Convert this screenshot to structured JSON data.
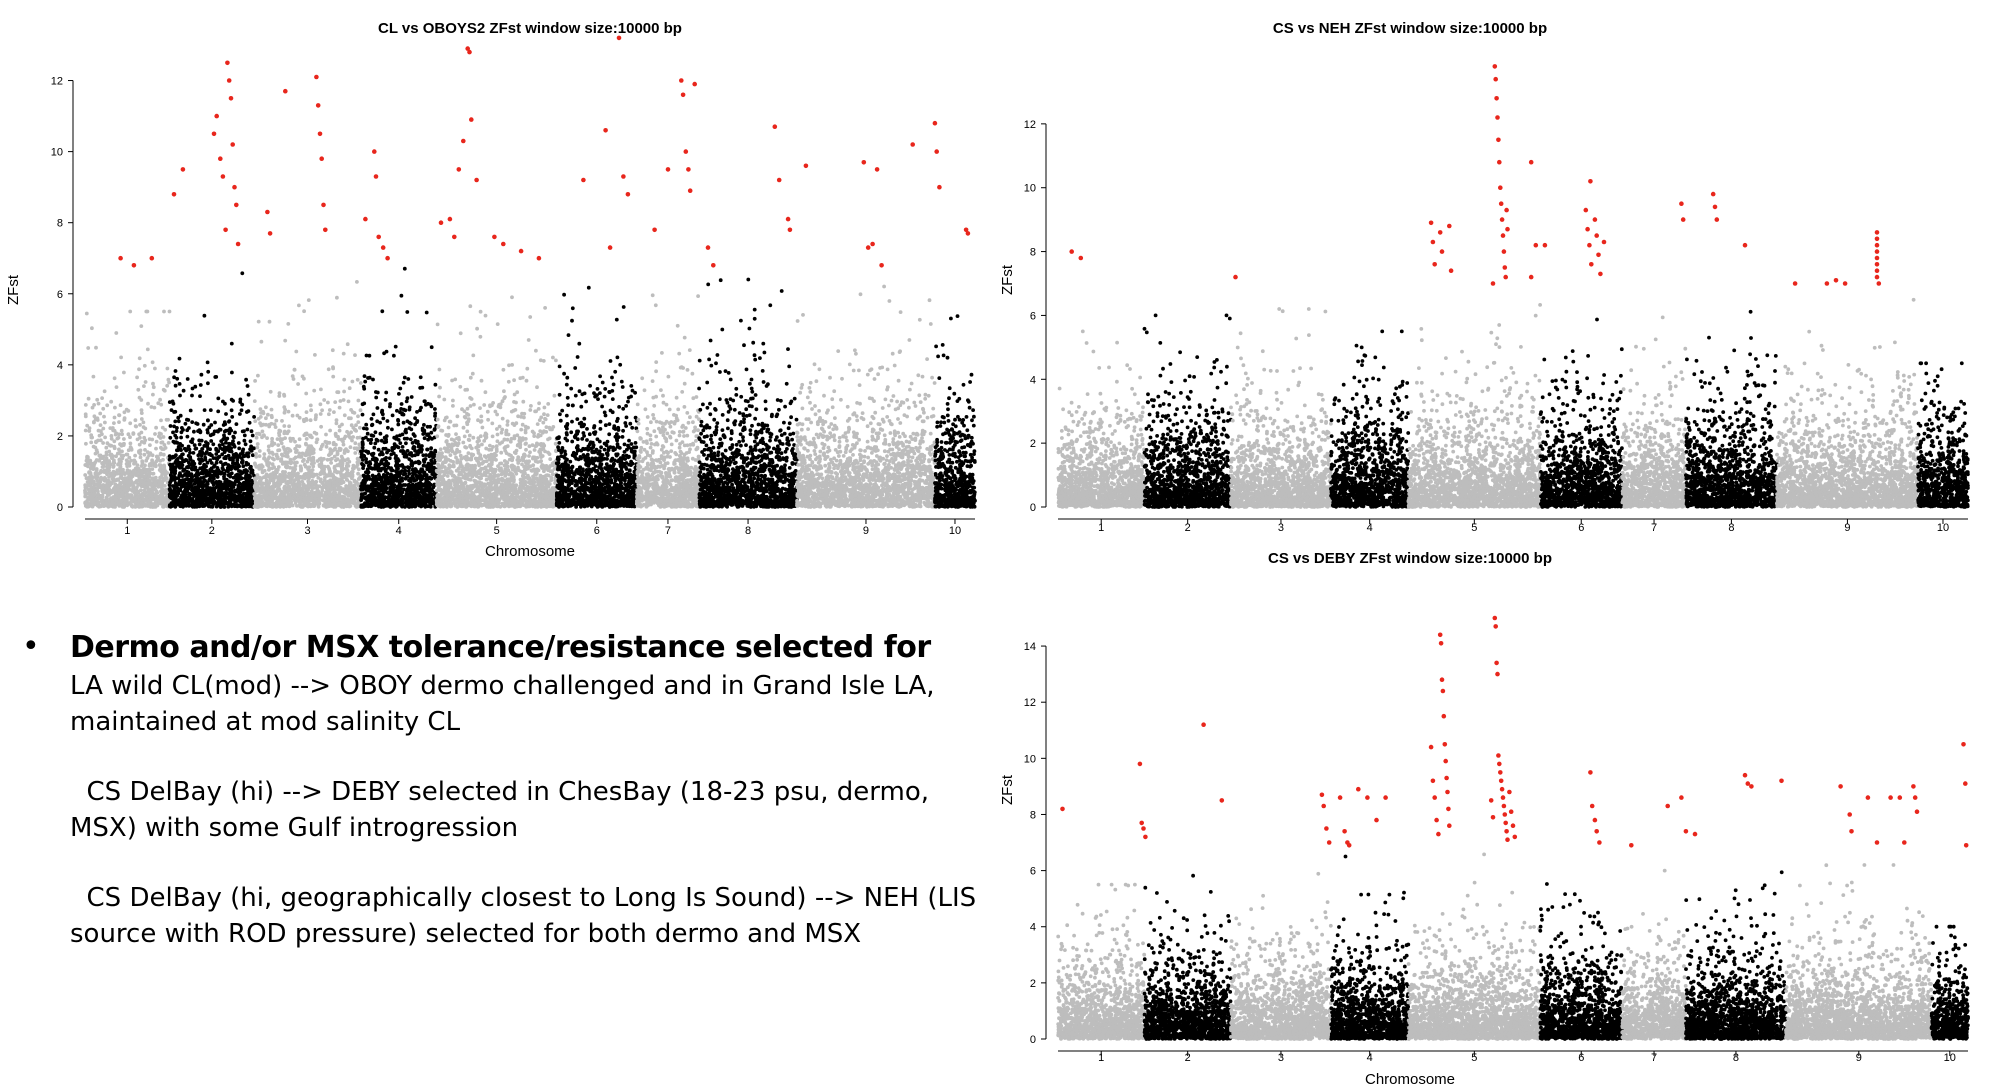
{
  "chart_data": [
    {
      "type": "scatter",
      "title": "CL vs OBOYS2 ZFst window size:10000 bp",
      "xlabel": "Chromosome",
      "ylabel": "ZFst",
      "ylim": [
        0,
        13
      ],
      "yticks": [
        0,
        2,
        4,
        6,
        8,
        10,
        12
      ],
      "categories": [
        "1",
        "2",
        "3",
        "4",
        "5",
        "6",
        "7",
        "8",
        "9",
        "10"
      ],
      "chromosome_spans": [
        [
          0.0,
          0.095
        ],
        [
          0.095,
          0.19
        ],
        [
          0.19,
          0.31
        ],
        [
          0.31,
          0.395
        ],
        [
          0.395,
          0.53
        ],
        [
          0.53,
          0.62
        ],
        [
          0.62,
          0.69
        ],
        [
          0.69,
          0.8
        ],
        [
          0.8,
          0.955
        ],
        [
          0.955,
          1.0
        ]
      ],
      "chromosome_colors": [
        "#bdbdbd",
        "#000000",
        "#bdbdbd",
        "#000000",
        "#bdbdbd",
        "#000000",
        "#bdbdbd",
        "#000000",
        "#bdbdbd",
        "#000000"
      ],
      "chromosome_peaks": [
        5.5,
        6.8,
        6.5,
        6.8,
        6.5,
        6.3,
        6.5,
        6.8,
        6.5,
        6.8
      ],
      "threshold": 7.0,
      "outlier_color": "#e8261c",
      "point_color_primary": "#bdbdbd",
      "point_color_secondary": "#000000",
      "outliers": [
        {
          "x": 0.04,
          "y": 7.0
        },
        {
          "x": 0.055,
          "y": 6.8
        },
        {
          "x": 0.075,
          "y": 7.0
        },
        {
          "x": 0.1,
          "y": 8.8
        },
        {
          "x": 0.11,
          "y": 9.5
        },
        {
          "x": 0.145,
          "y": 10.5
        },
        {
          "x": 0.148,
          "y": 11.0
        },
        {
          "x": 0.152,
          "y": 9.8
        },
        {
          "x": 0.155,
          "y": 9.3
        },
        {
          "x": 0.158,
          "y": 7.8
        },
        {
          "x": 0.16,
          "y": 12.5
        },
        {
          "x": 0.162,
          "y": 12.0
        },
        {
          "x": 0.164,
          "y": 11.5
        },
        {
          "x": 0.166,
          "y": 10.2
        },
        {
          "x": 0.168,
          "y": 9.0
        },
        {
          "x": 0.17,
          "y": 8.5
        },
        {
          "x": 0.172,
          "y": 7.4
        },
        {
          "x": 0.205,
          "y": 8.3
        },
        {
          "x": 0.208,
          "y": 7.7
        },
        {
          "x": 0.225,
          "y": 11.7
        },
        {
          "x": 0.26,
          "y": 12.1
        },
        {
          "x": 0.262,
          "y": 11.3
        },
        {
          "x": 0.264,
          "y": 10.5
        },
        {
          "x": 0.266,
          "y": 9.8
        },
        {
          "x": 0.268,
          "y": 8.5
        },
        {
          "x": 0.27,
          "y": 7.8
        },
        {
          "x": 0.315,
          "y": 8.1
        },
        {
          "x": 0.325,
          "y": 10.0
        },
        {
          "x": 0.327,
          "y": 9.3
        },
        {
          "x": 0.33,
          "y": 7.6
        },
        {
          "x": 0.335,
          "y": 7.3
        },
        {
          "x": 0.34,
          "y": 7.0
        },
        {
          "x": 0.4,
          "y": 8.0
        },
        {
          "x": 0.41,
          "y": 8.1
        },
        {
          "x": 0.415,
          "y": 7.6
        },
        {
          "x": 0.42,
          "y": 9.5
        },
        {
          "x": 0.425,
          "y": 10.3
        },
        {
          "x": 0.43,
          "y": 12.9
        },
        {
          "x": 0.432,
          "y": 12.8
        },
        {
          "x": 0.434,
          "y": 10.9
        },
        {
          "x": 0.44,
          "y": 9.2
        },
        {
          "x": 0.46,
          "y": 7.6
        },
        {
          "x": 0.47,
          "y": 7.4
        },
        {
          "x": 0.49,
          "y": 7.2
        },
        {
          "x": 0.51,
          "y": 7.0
        },
        {
          "x": 0.56,
          "y": 9.2
        },
        {
          "x": 0.585,
          "y": 10.6
        },
        {
          "x": 0.59,
          "y": 7.3
        },
        {
          "x": 0.6,
          "y": 13.2
        },
        {
          "x": 0.605,
          "y": 9.3
        },
        {
          "x": 0.61,
          "y": 8.8
        },
        {
          "x": 0.64,
          "y": 7.8
        },
        {
          "x": 0.655,
          "y": 9.5
        },
        {
          "x": 0.67,
          "y": 12.0
        },
        {
          "x": 0.672,
          "y": 11.6
        },
        {
          "x": 0.675,
          "y": 10.0
        },
        {
          "x": 0.678,
          "y": 9.5
        },
        {
          "x": 0.68,
          "y": 8.9
        },
        {
          "x": 0.685,
          "y": 11.9
        },
        {
          "x": 0.7,
          "y": 7.3
        },
        {
          "x": 0.706,
          "y": 6.8
        },
        {
          "x": 0.775,
          "y": 10.7
        },
        {
          "x": 0.78,
          "y": 9.2
        },
        {
          "x": 0.79,
          "y": 8.1
        },
        {
          "x": 0.792,
          "y": 7.8
        },
        {
          "x": 0.81,
          "y": 9.6
        },
        {
          "x": 0.875,
          "y": 9.7
        },
        {
          "x": 0.88,
          "y": 7.3
        },
        {
          "x": 0.885,
          "y": 7.4
        },
        {
          "x": 0.89,
          "y": 9.5
        },
        {
          "x": 0.895,
          "y": 6.8
        },
        {
          "x": 0.93,
          "y": 10.2
        },
        {
          "x": 0.955,
          "y": 10.8
        },
        {
          "x": 0.957,
          "y": 10.0
        },
        {
          "x": 0.96,
          "y": 9.0
        },
        {
          "x": 0.99,
          "y": 7.8
        },
        {
          "x": 0.992,
          "y": 7.7
        }
      ]
    },
    {
      "type": "scatter",
      "title": "CS vs NEH ZFst window size:10000 bp",
      "xlabel": "",
      "ylabel": "ZFst",
      "ylim": [
        0,
        14
      ],
      "yticks": [
        0,
        2,
        4,
        6,
        8,
        10,
        12
      ],
      "categories": [
        "1",
        "2",
        "3",
        "4",
        "5",
        "6",
        "7",
        "8",
        "9",
        "10"
      ],
      "chromosome_spans": [
        [
          0.0,
          0.095
        ],
        [
          0.095,
          0.19
        ],
        [
          0.19,
          0.3
        ],
        [
          0.3,
          0.385
        ],
        [
          0.385,
          0.53
        ],
        [
          0.53,
          0.62
        ],
        [
          0.62,
          0.69
        ],
        [
          0.69,
          0.79
        ],
        [
          0.79,
          0.945
        ],
        [
          0.945,
          1.0
        ]
      ],
      "chromosome_colors": [
        "#bdbdbd",
        "#000000",
        "#bdbdbd",
        "#000000",
        "#bdbdbd",
        "#000000",
        "#bdbdbd",
        "#000000",
        "#bdbdbd",
        "#000000"
      ],
      "chromosome_peaks": [
        5.5,
        6.0,
        6.2,
        5.5,
        6.5,
        7.0,
        6.5,
        6.5,
        6.5,
        4.5
      ],
      "threshold": 7.0,
      "outlier_color": "#e8261c",
      "point_color_primary": "#bdbdbd",
      "point_color_secondary": "#000000",
      "outliers": [
        {
          "x": 0.015,
          "y": 8.0
        },
        {
          "x": 0.025,
          "y": 7.8
        },
        {
          "x": 0.195,
          "y": 7.2
        },
        {
          "x": 0.41,
          "y": 8.9
        },
        {
          "x": 0.412,
          "y": 8.3
        },
        {
          "x": 0.414,
          "y": 7.6
        },
        {
          "x": 0.42,
          "y": 8.6
        },
        {
          "x": 0.422,
          "y": 8.0
        },
        {
          "x": 0.43,
          "y": 8.8
        },
        {
          "x": 0.432,
          "y": 7.4
        },
        {
          "x": 0.48,
          "y": 13.8
        },
        {
          "x": 0.481,
          "y": 13.4
        },
        {
          "x": 0.482,
          "y": 12.8
        },
        {
          "x": 0.483,
          "y": 12.2
        },
        {
          "x": 0.484,
          "y": 11.5
        },
        {
          "x": 0.485,
          "y": 10.8
        },
        {
          "x": 0.486,
          "y": 10.0
        },
        {
          "x": 0.487,
          "y": 9.5
        },
        {
          "x": 0.488,
          "y": 9.0
        },
        {
          "x": 0.489,
          "y": 8.5
        },
        {
          "x": 0.49,
          "y": 8.0
        },
        {
          "x": 0.491,
          "y": 7.5
        },
        {
          "x": 0.492,
          "y": 7.2
        },
        {
          "x": 0.478,
          "y": 7.0
        },
        {
          "x": 0.493,
          "y": 9.3
        },
        {
          "x": 0.494,
          "y": 8.7
        },
        {
          "x": 0.52,
          "y": 10.8
        },
        {
          "x": 0.525,
          "y": 8.2
        },
        {
          "x": 0.535,
          "y": 8.2
        },
        {
          "x": 0.52,
          "y": 7.2
        },
        {
          "x": 0.585,
          "y": 10.2
        },
        {
          "x": 0.58,
          "y": 9.3
        },
        {
          "x": 0.582,
          "y": 8.7
        },
        {
          "x": 0.584,
          "y": 8.2
        },
        {
          "x": 0.586,
          "y": 7.6
        },
        {
          "x": 0.59,
          "y": 9.0
        },
        {
          "x": 0.592,
          "y": 8.5
        },
        {
          "x": 0.594,
          "y": 7.9
        },
        {
          "x": 0.596,
          "y": 7.3
        },
        {
          "x": 0.6,
          "y": 8.3
        },
        {
          "x": 0.685,
          "y": 9.5
        },
        {
          "x": 0.687,
          "y": 9.0
        },
        {
          "x": 0.72,
          "y": 9.8
        },
        {
          "x": 0.722,
          "y": 9.4
        },
        {
          "x": 0.724,
          "y": 9.0
        },
        {
          "x": 0.755,
          "y": 8.2
        },
        {
          "x": 0.81,
          "y": 7.0
        },
        {
          "x": 0.845,
          "y": 7.0
        },
        {
          "x": 0.855,
          "y": 7.1
        },
        {
          "x": 0.865,
          "y": 7.0
        },
        {
          "x": 0.9,
          "y": 8.6
        },
        {
          "x": 0.9,
          "y": 8.4
        },
        {
          "x": 0.9,
          "y": 8.2
        },
        {
          "x": 0.9,
          "y": 8.0
        },
        {
          "x": 0.9,
          "y": 7.8
        },
        {
          "x": 0.9,
          "y": 7.6
        },
        {
          "x": 0.9,
          "y": 7.4
        },
        {
          "x": 0.9,
          "y": 7.2
        },
        {
          "x": 0.902,
          "y": 7.0
        }
      ]
    },
    {
      "type": "scatter",
      "title": "CS vs DEBY ZFst window size:10000 bp",
      "xlabel": "Chromosome",
      "ylabel": "ZFst",
      "ylim": [
        0,
        15
      ],
      "yticks": [
        0,
        2,
        4,
        6,
        8,
        10,
        12,
        14
      ],
      "categories": [
        "1",
        "2",
        "3",
        "4",
        "5",
        "6",
        "7",
        "8",
        "9",
        "10"
      ],
      "chromosome_spans": [
        [
          0.0,
          0.095
        ],
        [
          0.095,
          0.19
        ],
        [
          0.19,
          0.3
        ],
        [
          0.3,
          0.385
        ],
        [
          0.385,
          0.53
        ],
        [
          0.53,
          0.62
        ],
        [
          0.62,
          0.69
        ],
        [
          0.69,
          0.8
        ],
        [
          0.8,
          0.96
        ],
        [
          0.96,
          1.0
        ]
      ],
      "chromosome_colors": [
        "#bdbdbd",
        "#000000",
        "#bdbdbd",
        "#000000",
        "#bdbdbd",
        "#000000",
        "#bdbdbd",
        "#000000",
        "#bdbdbd",
        "#000000"
      ],
      "chromosome_peaks": [
        5.5,
        6.2,
        6.0,
        6.8,
        6.8,
        6.3,
        6.0,
        6.3,
        6.2,
        4.0
      ],
      "threshold": 7.0,
      "outlier_color": "#e8261c",
      "point_color_primary": "#bdbdbd",
      "point_color_secondary": "#000000",
      "outliers": [
        {
          "x": 0.005,
          "y": 8.2
        },
        {
          "x": 0.09,
          "y": 9.8
        },
        {
          "x": 0.092,
          "y": 7.7
        },
        {
          "x": 0.094,
          "y": 7.5
        },
        {
          "x": 0.096,
          "y": 7.2
        },
        {
          "x": 0.16,
          "y": 11.2
        },
        {
          "x": 0.18,
          "y": 8.5
        },
        {
          "x": 0.29,
          "y": 8.7
        },
        {
          "x": 0.292,
          "y": 8.3
        },
        {
          "x": 0.295,
          "y": 7.5
        },
        {
          "x": 0.298,
          "y": 7.0
        },
        {
          "x": 0.31,
          "y": 8.6
        },
        {
          "x": 0.315,
          "y": 7.4
        },
        {
          "x": 0.318,
          "y": 7.0
        },
        {
          "x": 0.32,
          "y": 6.9
        },
        {
          "x": 0.33,
          "y": 8.9
        },
        {
          "x": 0.34,
          "y": 8.6
        },
        {
          "x": 0.35,
          "y": 7.8
        },
        {
          "x": 0.36,
          "y": 8.6
        },
        {
          "x": 0.41,
          "y": 10.4
        },
        {
          "x": 0.412,
          "y": 9.2
        },
        {
          "x": 0.414,
          "y": 8.6
        },
        {
          "x": 0.416,
          "y": 7.8
        },
        {
          "x": 0.418,
          "y": 7.3
        },
        {
          "x": 0.42,
          "y": 14.4
        },
        {
          "x": 0.421,
          "y": 14.1
        },
        {
          "x": 0.422,
          "y": 12.8
        },
        {
          "x": 0.423,
          "y": 12.4
        },
        {
          "x": 0.424,
          "y": 11.5
        },
        {
          "x": 0.425,
          "y": 10.5
        },
        {
          "x": 0.426,
          "y": 9.9
        },
        {
          "x": 0.427,
          "y": 9.3
        },
        {
          "x": 0.428,
          "y": 8.8
        },
        {
          "x": 0.429,
          "y": 8.2
        },
        {
          "x": 0.43,
          "y": 7.6
        },
        {
          "x": 0.48,
          "y": 15.0
        },
        {
          "x": 0.481,
          "y": 14.7
        },
        {
          "x": 0.482,
          "y": 13.4
        },
        {
          "x": 0.483,
          "y": 13.0
        },
        {
          "x": 0.484,
          "y": 10.1
        },
        {
          "x": 0.485,
          "y": 9.8
        },
        {
          "x": 0.486,
          "y": 9.5
        },
        {
          "x": 0.487,
          "y": 9.2
        },
        {
          "x": 0.488,
          "y": 8.9
        },
        {
          "x": 0.489,
          "y": 8.6
        },
        {
          "x": 0.49,
          "y": 8.3
        },
        {
          "x": 0.491,
          "y": 8.0
        },
        {
          "x": 0.492,
          "y": 7.7
        },
        {
          "x": 0.493,
          "y": 7.4
        },
        {
          "x": 0.494,
          "y": 7.1
        },
        {
          "x": 0.476,
          "y": 8.5
        },
        {
          "x": 0.478,
          "y": 7.9
        },
        {
          "x": 0.496,
          "y": 8.8
        },
        {
          "x": 0.498,
          "y": 8.1
        },
        {
          "x": 0.5,
          "y": 7.6
        },
        {
          "x": 0.502,
          "y": 7.2
        },
        {
          "x": 0.585,
          "y": 9.5
        },
        {
          "x": 0.587,
          "y": 8.3
        },
        {
          "x": 0.59,
          "y": 7.8
        },
        {
          "x": 0.592,
          "y": 7.4
        },
        {
          "x": 0.595,
          "y": 7.0
        },
        {
          "x": 0.63,
          "y": 6.9
        },
        {
          "x": 0.67,
          "y": 8.3
        },
        {
          "x": 0.685,
          "y": 8.6
        },
        {
          "x": 0.69,
          "y": 7.4
        },
        {
          "x": 0.7,
          "y": 7.3
        },
        {
          "x": 0.755,
          "y": 9.4
        },
        {
          "x": 0.758,
          "y": 9.1
        },
        {
          "x": 0.762,
          "y": 9.0
        },
        {
          "x": 0.795,
          "y": 9.2
        },
        {
          "x": 0.86,
          "y": 9.0
        },
        {
          "x": 0.87,
          "y": 8.0
        },
        {
          "x": 0.872,
          "y": 7.4
        },
        {
          "x": 0.89,
          "y": 8.6
        },
        {
          "x": 0.9,
          "y": 7.0
        },
        {
          "x": 0.915,
          "y": 8.6
        },
        {
          "x": 0.925,
          "y": 8.6
        },
        {
          "x": 0.93,
          "y": 7.0
        },
        {
          "x": 0.94,
          "y": 9.0
        },
        {
          "x": 0.942,
          "y": 8.6
        },
        {
          "x": 0.944,
          "y": 8.1
        },
        {
          "x": 0.995,
          "y": 10.5
        },
        {
          "x": 0.997,
          "y": 9.1
        },
        {
          "x": 0.998,
          "y": 6.9
        }
      ]
    }
  ],
  "notes": {
    "bullet": "•",
    "headline": "Dermo and/or MSX tolerance/resistance selected for",
    "paragraphs": [
      "LA wild CL(mod) --> OBOY dermo challenged and in Grand Isle LA,\nmaintained at mod salinity CL",
      "  CS DelBay (hi) --> DEBY selected in ChesBay (18-23 psu, dermo,\nMSX) with some Gulf introgression",
      "  CS DelBay (hi, geographically closest to Long Is Sound) --> NEH (LIS\nsource with ROD pressure) selected for both dermo and MSX"
    ]
  }
}
